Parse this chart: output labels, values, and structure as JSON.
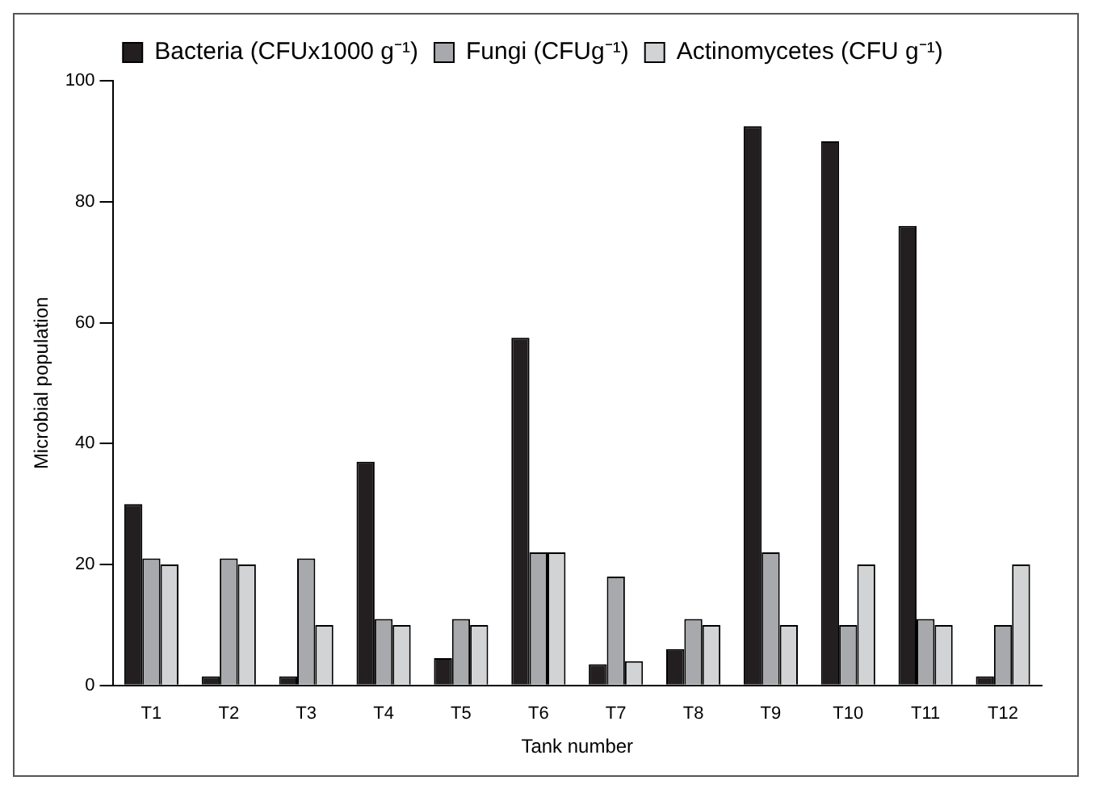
{
  "chart_data": {
    "type": "bar",
    "xlabel": "Tank number",
    "ylabel": "Microbial population",
    "categories": [
      "T1",
      "T2",
      "T3",
      "T4",
      "T5",
      "T6",
      "T7",
      "T8",
      "T9",
      "T10",
      "T11",
      "T12"
    ],
    "series": [
      {
        "name": "Bacteria (CFUx1000 g⁻¹)",
        "color": "#231f20",
        "values": [
          30,
          1.5,
          1.5,
          37,
          4.5,
          57.5,
          3.5,
          6,
          92.5,
          90,
          76,
          1.5
        ]
      },
      {
        "name": "Fungi (CFUg⁻¹)",
        "color": "#a7a9ac",
        "values": [
          21,
          21,
          21,
          11,
          11,
          22,
          18,
          11,
          22,
          10,
          11,
          10
        ]
      },
      {
        "name": "Actinomycetes (CFU g⁻¹)",
        "color": "#d1d3d4",
        "values": [
          20,
          20,
          10,
          10,
          10,
          22,
          4,
          10,
          10,
          20,
          10,
          20
        ]
      }
    ],
    "ylim": [
      0,
      100
    ],
    "yticks": [
      0,
      20,
      40,
      60,
      80,
      100
    ],
    "grid": false,
    "legend": "top"
  }
}
